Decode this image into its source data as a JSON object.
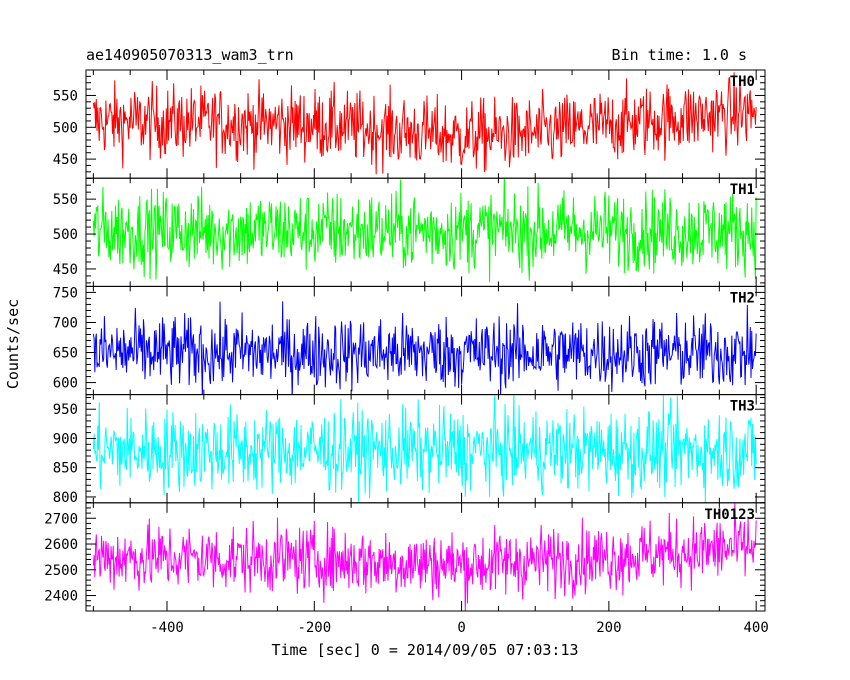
{
  "title_left": "ae140905070313_wam3_trn",
  "title_right": "Bin time: 1.0 s",
  "chart_data": {
    "type": "line",
    "xlabel": "Time [sec] 0 = 2014/09/05 07:03:13",
    "ylabel": "Counts/sec",
    "xlim": [
      -510,
      412
    ],
    "x_range": [
      -500,
      400
    ],
    "bin_time_s": 1.0,
    "xticks": [
      -400,
      -200,
      0,
      200,
      400
    ],
    "panels": [
      {
        "name": "TH0",
        "color": "#ff0000",
        "mean": 505,
        "noise": 28,
        "ylim": [
          420,
          590
        ],
        "yticks": [
          450,
          500,
          550
        ],
        "trend": [
          [
            -500,
            510
          ],
          [
            -200,
            505
          ],
          [
            0,
            485
          ],
          [
            100,
            490
          ],
          [
            250,
            510
          ],
          [
            400,
            525
          ]
        ]
      },
      {
        "name": "TH1",
        "color": "#00ff00",
        "mean": 505,
        "noise": 28,
        "ylim": [
          425,
          580
        ],
        "yticks": [
          450,
          500,
          550
        ],
        "trend": [
          [
            -500,
            505
          ],
          [
            400,
            505
          ]
        ]
      },
      {
        "name": "TH2",
        "color": "#0000ff",
        "mean": 650,
        "noise": 30,
        "ylim": [
          580,
          760
        ],
        "yticks": [
          600,
          650,
          700,
          750
        ],
        "trend": [
          [
            -500,
            650
          ],
          [
            400,
            650
          ]
        ]
      },
      {
        "name": "TH3",
        "color": "#00ffff",
        "mean": 880,
        "noise": 35,
        "ylim": [
          790,
          975
        ],
        "yticks": [
          800,
          850,
          900,
          950
        ],
        "trend": [
          [
            -500,
            880
          ],
          [
            400,
            880
          ]
        ]
      },
      {
        "name": "TH0123",
        "color": "#ff00ff",
        "mean": 2540,
        "noise": 65,
        "ylim": [
          2340,
          2760
        ],
        "yticks": [
          2400,
          2500,
          2600,
          2700
        ],
        "trend": [
          [
            -500,
            2550
          ],
          [
            -200,
            2540
          ],
          [
            0,
            2520
          ],
          [
            200,
            2550
          ],
          [
            400,
            2590
          ]
        ]
      }
    ]
  }
}
